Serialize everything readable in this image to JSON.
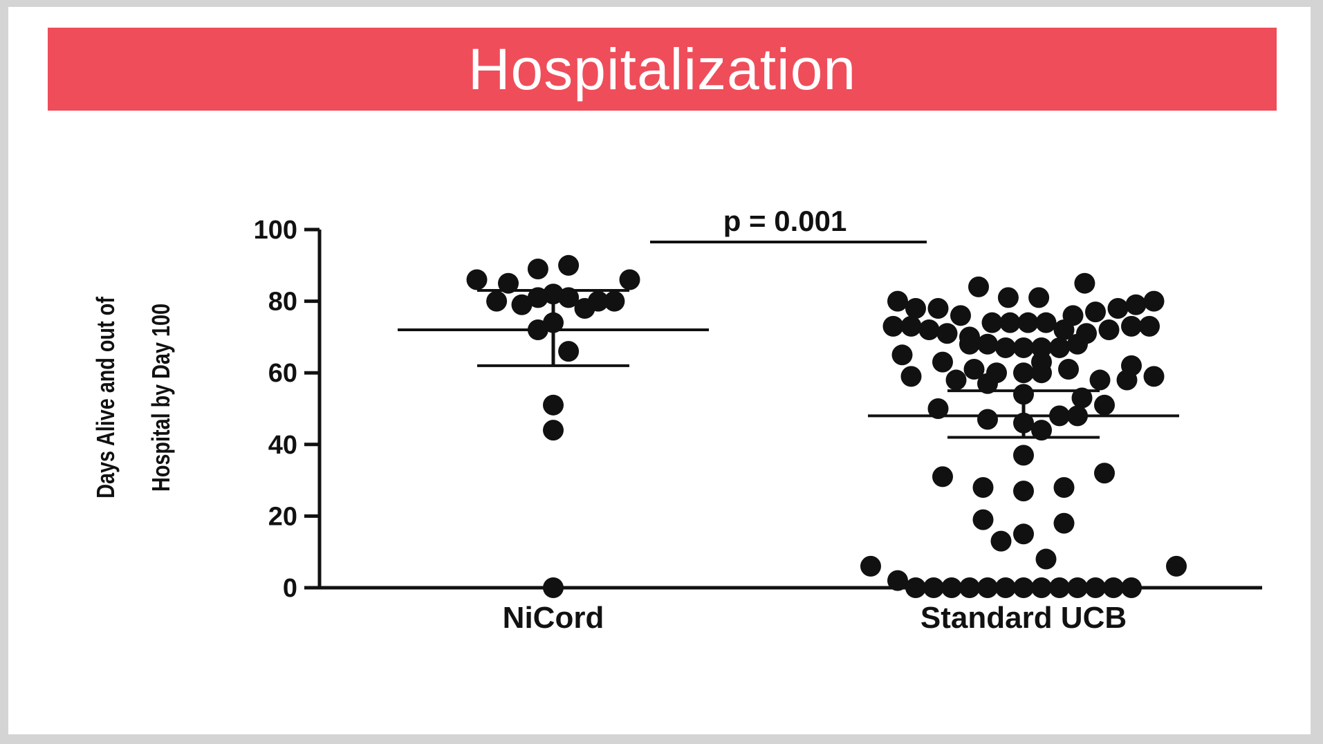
{
  "title": "Hospitalization",
  "colors": {
    "banner": "#ef4d5a",
    "title_text": "#ffffff",
    "points": "#111111",
    "axis": "#111111"
  },
  "chart_data": {
    "type": "scatter",
    "ylabel_lines": [
      "Days Alive and out of",
      "Hospital by Day 100"
    ],
    "ylim": [
      0,
      100
    ],
    "yticks": [
      "0",
      "20",
      "40",
      "60",
      "80",
      "100"
    ],
    "categories": [
      "NiCord",
      "Standard UCB"
    ],
    "annotation": "p = 0.001",
    "grid": false,
    "series": [
      {
        "category": "NiCord",
        "mean": 72,
        "sd_upper": 83,
        "sd_lower": 62,
        "points": [
          {
            "x": -0.85,
            "y": 86
          },
          {
            "x": -0.5,
            "y": 85
          },
          {
            "x": -0.17,
            "y": 89
          },
          {
            "x": 0.17,
            "y": 90
          },
          {
            "x": 0.85,
            "y": 86
          },
          {
            "x": -0.63,
            "y": 80
          },
          {
            "x": -0.35,
            "y": 79
          },
          {
            "x": -0.17,
            "y": 81
          },
          {
            "x": 0.0,
            "y": 82
          },
          {
            "x": 0.17,
            "y": 81
          },
          {
            "x": 0.35,
            "y": 78
          },
          {
            "x": 0.5,
            "y": 80
          },
          {
            "x": 0.68,
            "y": 80
          },
          {
            "x": 0.0,
            "y": 74
          },
          {
            "x": -0.17,
            "y": 72
          },
          {
            "x": 0.17,
            "y": 66
          },
          {
            "x": 0.0,
            "y": 51
          },
          {
            "x": 0.0,
            "y": 44
          },
          {
            "x": 0.0,
            "y": 0
          }
        ]
      },
      {
        "category": "Standard UCB",
        "mean": 48,
        "sd_upper": 55,
        "sd_lower": 42,
        "points": [
          {
            "x": -0.5,
            "y": 84
          },
          {
            "x": -0.17,
            "y": 81
          },
          {
            "x": 0.17,
            "y": 81
          },
          {
            "x": 0.68,
            "y": 85
          },
          {
            "x": -1.4,
            "y": 80
          },
          {
            "x": -1.2,
            "y": 78
          },
          {
            "x": -0.95,
            "y": 78
          },
          {
            "x": -0.7,
            "y": 76
          },
          {
            "x": 0.55,
            "y": 76
          },
          {
            "x": 0.8,
            "y": 77
          },
          {
            "x": 1.05,
            "y": 78
          },
          {
            "x": 1.25,
            "y": 79
          },
          {
            "x": 1.45,
            "y": 80
          },
          {
            "x": -1.45,
            "y": 73
          },
          {
            "x": -1.25,
            "y": 73
          },
          {
            "x": -1.05,
            "y": 72
          },
          {
            "x": -0.85,
            "y": 71
          },
          {
            "x": -0.6,
            "y": 70
          },
          {
            "x": -0.35,
            "y": 74
          },
          {
            "x": -0.15,
            "y": 74
          },
          {
            "x": 0.05,
            "y": 74
          },
          {
            "x": 0.25,
            "y": 74
          },
          {
            "x": 0.45,
            "y": 72
          },
          {
            "x": 0.7,
            "y": 71
          },
          {
            "x": 0.95,
            "y": 72
          },
          {
            "x": 1.2,
            "y": 73
          },
          {
            "x": 1.4,
            "y": 73
          },
          {
            "x": -0.6,
            "y": 68
          },
          {
            "x": -0.4,
            "y": 68
          },
          {
            "x": -0.2,
            "y": 67
          },
          {
            "x": 0.0,
            "y": 67
          },
          {
            "x": 0.2,
            "y": 67
          },
          {
            "x": 0.4,
            "y": 67
          },
          {
            "x": 0.6,
            "y": 68
          },
          {
            "x": -1.35,
            "y": 65
          },
          {
            "x": -0.9,
            "y": 63
          },
          {
            "x": 0.2,
            "y": 63
          },
          {
            "x": 1.2,
            "y": 62
          },
          {
            "x": -1.25,
            "y": 59
          },
          {
            "x": -0.75,
            "y": 58
          },
          {
            "x": -0.55,
            "y": 61
          },
          {
            "x": -0.3,
            "y": 60
          },
          {
            "x": 0.0,
            "y": 60
          },
          {
            "x": 0.2,
            "y": 60
          },
          {
            "x": 0.5,
            "y": 61
          },
          {
            "x": 0.85,
            "y": 58
          },
          {
            "x": 1.15,
            "y": 58
          },
          {
            "x": 1.45,
            "y": 59
          },
          {
            "x": -0.4,
            "y": 57
          },
          {
            "x": 0.0,
            "y": 54
          },
          {
            "x": 0.65,
            "y": 53
          },
          {
            "x": 0.9,
            "y": 51
          },
          {
            "x": -0.95,
            "y": 50
          },
          {
            "x": -0.4,
            "y": 47
          },
          {
            "x": 0.0,
            "y": 46
          },
          {
            "x": 0.2,
            "y": 44
          },
          {
            "x": 0.4,
            "y": 48
          },
          {
            "x": 0.6,
            "y": 48
          },
          {
            "x": -0.9,
            "y": 31
          },
          {
            "x": -0.45,
            "y": 28
          },
          {
            "x": 0.0,
            "y": 27
          },
          {
            "x": 0.45,
            "y": 28
          },
          {
            "x": 0.9,
            "y": 32
          },
          {
            "x": 0.0,
            "y": 37
          },
          {
            "x": -0.45,
            "y": 19
          },
          {
            "x": 0.45,
            "y": 18
          },
          {
            "x": -0.25,
            "y": 13
          },
          {
            "x": 0.0,
            "y": 15
          },
          {
            "x": 0.25,
            "y": 8
          },
          {
            "x": -1.7,
            "y": 6
          },
          {
            "x": 1.7,
            "y": 6
          },
          {
            "x": -1.4,
            "y": 2
          },
          {
            "x": -1.2,
            "y": 0
          },
          {
            "x": -1.0,
            "y": 0
          },
          {
            "x": -0.8,
            "y": 0
          },
          {
            "x": -0.6,
            "y": 0
          },
          {
            "x": -0.4,
            "y": 0
          },
          {
            "x": -0.2,
            "y": 0
          },
          {
            "x": 0.0,
            "y": 0
          },
          {
            "x": 0.2,
            "y": 0
          },
          {
            "x": 0.4,
            "y": 0
          },
          {
            "x": 0.6,
            "y": 0
          },
          {
            "x": 0.8,
            "y": 0
          },
          {
            "x": 1.0,
            "y": 0
          },
          {
            "x": 1.2,
            "y": 0
          }
        ]
      }
    ]
  }
}
